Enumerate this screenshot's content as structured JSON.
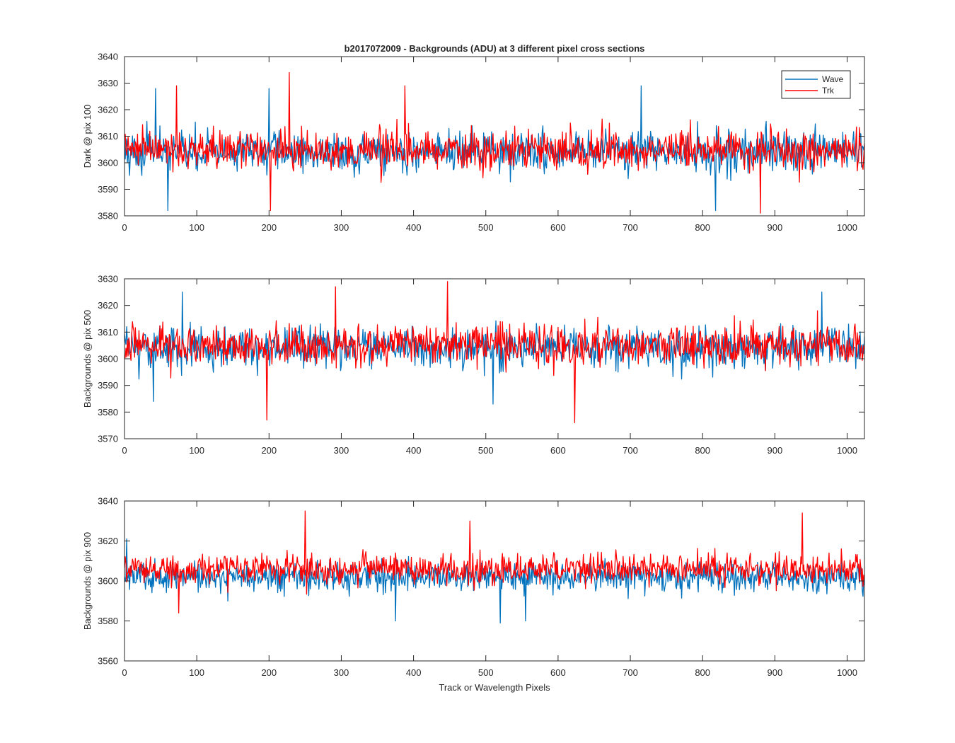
{
  "chart_data": {
    "type": "line",
    "title": "b2017072009 - Backgrounds (ADU) at 3 different pixel cross sections",
    "xlabel": "Track or Wavelength Pixels",
    "xlim": [
      0,
      1024
    ],
    "xticks": [
      0,
      100,
      200,
      300,
      400,
      500,
      600,
      700,
      800,
      900,
      1000
    ],
    "legend": {
      "location": "top-right",
      "entries": [
        "Wave",
        "Trk"
      ]
    },
    "colors": {
      "Wave": "#0072BD",
      "Trk": "#FF0000"
    },
    "grid": false,
    "panels": [
      {
        "ylabel": "Dark @ pix 100",
        "ylim": [
          3580,
          3640
        ],
        "yticks": [
          3580,
          3590,
          3600,
          3610,
          3620,
          3630,
          3640
        ],
        "series": [
          {
            "name": "Wave",
            "mean": 3604,
            "min": 3582,
            "max": 3629,
            "x_step": 1,
            "peaks": [
              [
                43,
                3628
              ],
              [
                200,
                3628
              ],
              [
                715,
                3629
              ],
              [
                60,
                3582
              ],
              [
                818,
                3582
              ]
            ]
          },
          {
            "name": "Trk",
            "mean": 3605,
            "min": 3581,
            "max": 3634,
            "x_step": 1,
            "peaks": [
              [
                228,
                3634
              ],
              [
                72,
                3629
              ],
              [
                388,
                3629
              ],
              [
                202,
                3582
              ],
              [
                880,
                3581
              ]
            ]
          }
        ]
      },
      {
        "ylabel": "Backgrounds @ pix 500",
        "ylim": [
          3570,
          3630
        ],
        "yticks": [
          3570,
          3580,
          3590,
          3600,
          3610,
          3620,
          3630
        ],
        "series": [
          {
            "name": "Wave",
            "mean": 3604,
            "min": 3583,
            "max": 3625,
            "x_step": 1,
            "peaks": [
              [
                80,
                3625
              ],
              [
                965,
                3625
              ],
              [
                40,
                3584
              ],
              [
                510,
                3583
              ]
            ]
          },
          {
            "name": "Trk",
            "mean": 3605,
            "min": 3576,
            "max": 3629,
            "x_step": 1,
            "peaks": [
              [
                447,
                3629
              ],
              [
                292,
                3627
              ],
              [
                197,
                3577
              ],
              [
                623,
                3576
              ]
            ]
          }
        ]
      },
      {
        "ylabel": "Backgrounds @ pix 900",
        "ylim": [
          3560,
          3640
        ],
        "yticks": [
          3560,
          3580,
          3600,
          3620,
          3640
        ],
        "series": [
          {
            "name": "Wave",
            "mean": 3602,
            "min": 3579,
            "max": 3621,
            "x_step": 1,
            "peaks": [
              [
                3,
                3621
              ],
              [
                375,
                3580
              ],
              [
                520,
                3579
              ],
              [
                555,
                3580
              ]
            ]
          },
          {
            "name": "Trk",
            "mean": 3606,
            "min": 3584,
            "max": 3635,
            "x_step": 1,
            "peaks": [
              [
                250,
                3635
              ],
              [
                938,
                3634
              ],
              [
                478,
                3630
              ],
              [
                75,
                3584
              ]
            ]
          }
        ]
      }
    ]
  }
}
